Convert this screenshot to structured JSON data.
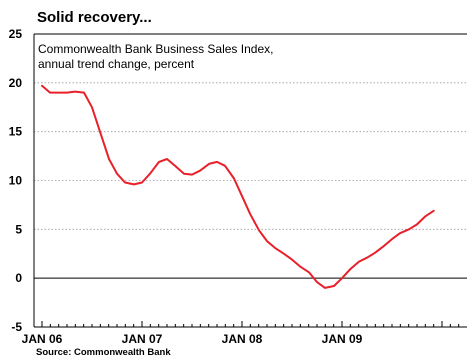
{
  "chart_data": {
    "type": "line",
    "title": "Solid recovery...",
    "subtitle_lines": [
      "Commonwealth Bank Business Sales Index,",
      "annual trend change, percent"
    ],
    "source": "Source: Commonwealth Bank",
    "xlabel": "",
    "ylabel": "",
    "ylim": [
      -5,
      25
    ],
    "y_ticks": [
      -5,
      0,
      5,
      10,
      15,
      20,
      25
    ],
    "xlim": [
      2006.0,
      2009.917
    ],
    "x_ticks": [
      {
        "label": "JAN 06",
        "value": 2006.0
      },
      {
        "label": "JAN 07",
        "value": 2007.0
      },
      {
        "label": "JAN 08",
        "value": 2008.0
      },
      {
        "label": "JAN 09",
        "value": 2009.0
      }
    ],
    "grid": "horizontal dotted",
    "line_color": "#e8202a",
    "series": [
      {
        "name": "",
        "points": [
          [
            2006.0,
            19.7
          ],
          [
            2006.08,
            19.0
          ],
          [
            2006.17,
            19.0
          ],
          [
            2006.25,
            19.0
          ],
          [
            2006.33,
            19.1
          ],
          [
            2006.42,
            19.0
          ],
          [
            2006.5,
            17.5
          ],
          [
            2006.58,
            15.0
          ],
          [
            2006.67,
            12.2
          ],
          [
            2006.75,
            10.7
          ],
          [
            2006.83,
            9.8
          ],
          [
            2006.92,
            9.6
          ],
          [
            2007.0,
            9.8
          ],
          [
            2007.08,
            10.7
          ],
          [
            2007.17,
            11.9
          ],
          [
            2007.25,
            12.2
          ],
          [
            2007.33,
            11.5
          ],
          [
            2007.42,
            10.7
          ],
          [
            2007.5,
            10.6
          ],
          [
            2007.58,
            11.0
          ],
          [
            2007.67,
            11.7
          ],
          [
            2007.75,
            11.9
          ],
          [
            2007.83,
            11.5
          ],
          [
            2007.92,
            10.2
          ],
          [
            2008.0,
            8.4
          ],
          [
            2008.08,
            6.6
          ],
          [
            2008.17,
            4.9
          ],
          [
            2008.25,
            3.8
          ],
          [
            2008.33,
            3.1
          ],
          [
            2008.42,
            2.5
          ],
          [
            2008.5,
            1.9
          ],
          [
            2008.58,
            1.2
          ],
          [
            2008.67,
            0.6
          ],
          [
            2008.75,
            -0.4
          ],
          [
            2008.83,
            -1.0
          ],
          [
            2008.92,
            -0.8
          ],
          [
            2009.0,
            0.0
          ],
          [
            2009.08,
            0.9
          ],
          [
            2009.17,
            1.7
          ],
          [
            2009.25,
            2.1
          ],
          [
            2009.33,
            2.6
          ],
          [
            2009.42,
            3.3
          ],
          [
            2009.5,
            4.0
          ],
          [
            2009.58,
            4.6
          ],
          [
            2009.67,
            5.0
          ],
          [
            2009.75,
            5.5
          ],
          [
            2009.83,
            6.3
          ],
          [
            2009.917,
            6.9
          ]
        ]
      }
    ]
  }
}
